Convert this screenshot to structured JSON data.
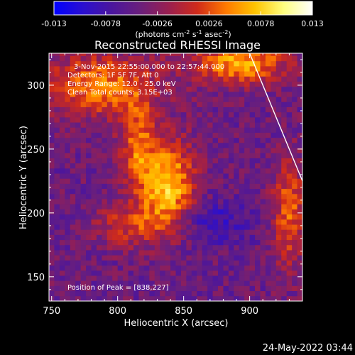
{
  "chart_data": {
    "type": "heatmap",
    "title": "Reconstructed RHESSI Image",
    "xlabel": "Heliocentric X (arcsec)",
    "ylabel": "Heliocentric Y (arcsec)",
    "xlim": [
      748,
      940
    ],
    "ylim": [
      131,
      325
    ],
    "xticks": [
      750,
      800,
      850,
      900
    ],
    "yticks": [
      150,
      200,
      250,
      300
    ],
    "colorbar": {
      "range": [
        -0.013,
        0.013
      ],
      "ticks": [
        "-0.013",
        "-0.0078",
        "-0.0026",
        "0.0026",
        "0.0078",
        "0.013"
      ],
      "unit_text": "(photons cm",
      "unit_exp1": "-2",
      "unit_mid1": " s",
      "unit_exp2": "-1",
      "unit_mid2": " asec",
      "unit_exp3": "-2",
      "unit_close": ")",
      "colors": [
        "#0000ff",
        "#2a0fd0",
        "#4a159e",
        "#6a1f7c",
        "#9a1f4f",
        "#d02b1a",
        "#ff7a00",
        "#ffc400",
        "#ffff80",
        "#ffffff"
      ]
    },
    "peak": {
      "x": 838,
      "y": 227
    },
    "sources": [
      {
        "x": 838,
        "y": 222,
        "sx": 14,
        "sy": 24,
        "amp": 0.0125
      },
      {
        "x": 815,
        "y": 253,
        "sx": 9,
        "sy": 24,
        "amp": 0.0078
      },
      {
        "x": 787,
        "y": 300,
        "sx": 30,
        "sy": 17,
        "amp": 0.0092
      },
      {
        "x": 893,
        "y": 318,
        "sx": 25,
        "sy": 12,
        "amp": 0.0105
      },
      {
        "x": 930,
        "y": 200,
        "sx": 9,
        "sy": 30,
        "amp": 0.0075
      },
      {
        "x": 808,
        "y": 190,
        "sx": 18,
        "sy": 12,
        "amp": 0.0058
      },
      {
        "x": 872,
        "y": 193,
        "sx": 18,
        "sy": 13,
        "amp": -0.004
      }
    ],
    "limb": [
      [
        900,
        325
      ],
      [
        940,
        225
      ]
    ],
    "annotations": {
      "time": "3-Nov-2015 22:55:00.000 to 22:57:44.000",
      "detectors": "Detectors: 1F 5F 7F, Att 0",
      "energy": "Energy Range: 12.0 - 25.0 keV",
      "clean": "Clean    Total counts: 3.15E+03",
      "peak_text": "Position of Peak = [838,227]"
    },
    "date_stamp": "24-May-2022 03:44"
  }
}
